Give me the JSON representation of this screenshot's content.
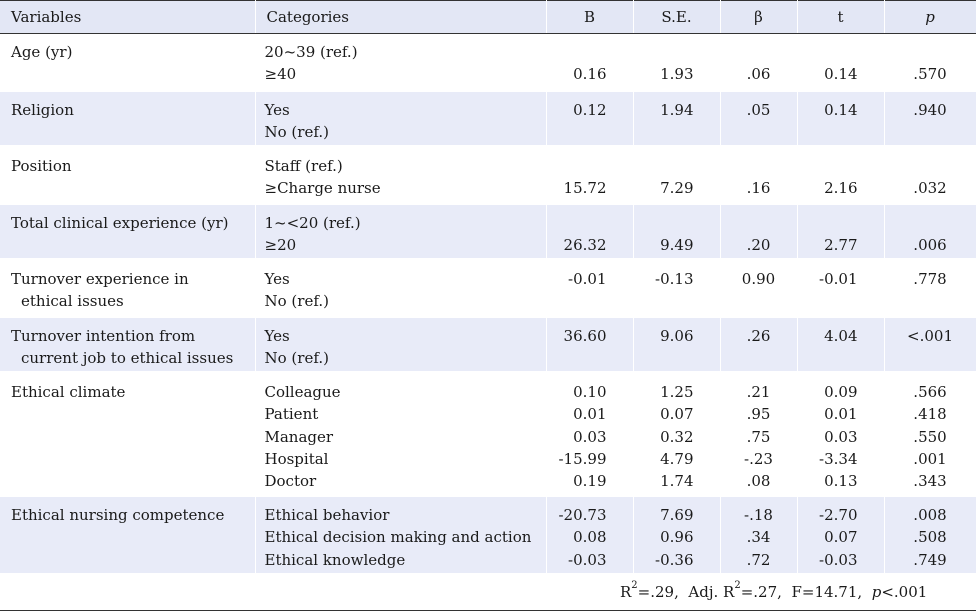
{
  "header": {
    "variables": "Variables",
    "categories": "Categories",
    "b": "B",
    "se": "S.E.",
    "beta": "β",
    "t": "t",
    "p": "p"
  },
  "rows": [
    {
      "variable": [
        "Age (yr)"
      ],
      "categories": [
        "20~39 (ref.)",
        "≥40"
      ],
      "B": [
        "",
        "0.16"
      ],
      "SE": [
        "",
        "1.93"
      ],
      "beta": [
        "",
        ".06"
      ],
      "t": [
        "",
        "0.14"
      ],
      "p": [
        "",
        ".570"
      ]
    },
    {
      "variable": [
        "Religion"
      ],
      "categories": [
        "Yes",
        "No (ref.)"
      ],
      "B": [
        "0.12",
        ""
      ],
      "SE": [
        "1.94",
        ""
      ],
      "beta": [
        ".05",
        ""
      ],
      "t": [
        "0.14",
        ""
      ],
      "p": [
        ".940",
        ""
      ]
    },
    {
      "variable": [
        "Position"
      ],
      "categories": [
        "Staff (ref.)",
        "≥Charge nurse"
      ],
      "B": [
        "",
        "15.72"
      ],
      "SE": [
        "",
        "7.29"
      ],
      "beta": [
        "",
        ".16"
      ],
      "t": [
        "",
        "2.16"
      ],
      "p": [
        "",
        ".032"
      ]
    },
    {
      "variable": [
        "Total clinical experience (yr)"
      ],
      "categories": [
        "1~<20 (ref.)",
        "≥20"
      ],
      "B": [
        "",
        "26.32"
      ],
      "SE": [
        "",
        "9.49"
      ],
      "beta": [
        "",
        ".20"
      ],
      "t": [
        "",
        "2.77"
      ],
      "p": [
        "",
        ".006"
      ]
    },
    {
      "variable": [
        "Turnover experience in",
        "ethical issues"
      ],
      "categories": [
        "Yes",
        "No (ref.)"
      ],
      "B": [
        "-0.01",
        ""
      ],
      "SE": [
        "-0.13",
        ""
      ],
      "beta": [
        "0.90",
        ""
      ],
      "t": [
        "-0.01",
        ""
      ],
      "p": [
        ".778",
        ""
      ]
    },
    {
      "variable": [
        "Turnover intention from",
        "current job to ethical issues"
      ],
      "categories": [
        "Yes",
        "No (ref.)"
      ],
      "B": [
        "36.60",
        ""
      ],
      "SE": [
        "9.06",
        ""
      ],
      "beta": [
        ".26",
        ""
      ],
      "t": [
        "4.04",
        ""
      ],
      "p": [
        "<.001",
        ""
      ]
    },
    {
      "variable": [
        "Ethical climate"
      ],
      "categories": [
        "Colleague",
        "Patient",
        "Manager",
        "Hospital",
        "Doctor"
      ],
      "B": [
        "0.10",
        "0.01",
        "0.03",
        "-15.99",
        "0.19"
      ],
      "SE": [
        "1.25",
        "0.07",
        "0.32",
        "4.79",
        "1.74"
      ],
      "beta": [
        ".21",
        ".95",
        ".75",
        "-.23",
        ".08"
      ],
      "t": [
        "0.09",
        "0.01",
        "0.03",
        "-3.34",
        "0.13"
      ],
      "p": [
        ".566",
        ".418",
        ".550",
        ".001",
        ".343"
      ]
    },
    {
      "variable": [
        "Ethical nursing competence"
      ],
      "categories": [
        "Ethical behavior",
        "Ethical decision making and action",
        "Ethical knowledge"
      ],
      "B": [
        "-20.73",
        "0.08",
        "-0.03"
      ],
      "SE": [
        "7.69",
        "0.96",
        "-0.36"
      ],
      "beta": [
        "-.18",
        ".34",
        ".72"
      ],
      "t": [
        "-2.70",
        "0.07",
        "-0.03"
      ],
      "p": [
        ".008",
        ".508",
        ".749"
      ]
    }
  ],
  "footer": {
    "r2_label": "R",
    "r2_sup": "2",
    "r2_value": "=.29,",
    "adj_label": "Adj. R",
    "adj_sup": "2",
    "adj_value": "=.27,",
    "f_text": "F=14.71,",
    "p_label": "p",
    "p_value": "<.001"
  }
}
